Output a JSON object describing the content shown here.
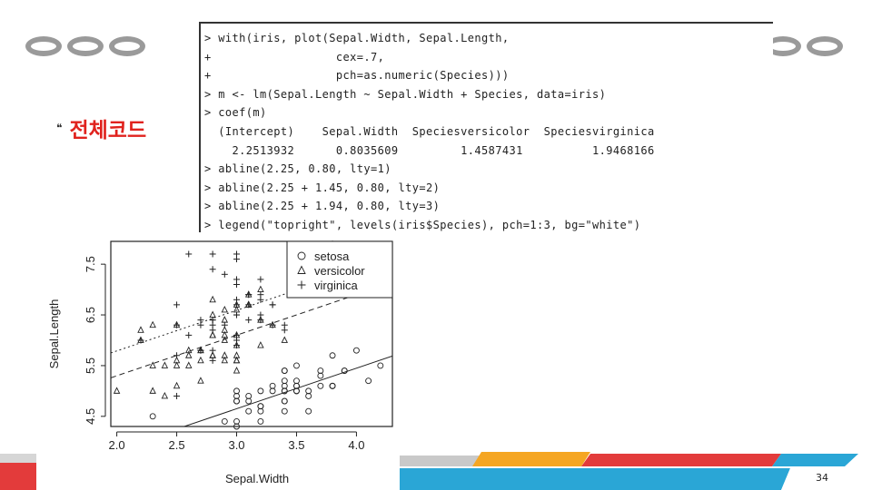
{
  "slide": {
    "heading": "전체코드",
    "bullet_icon": "quote-bullet-icon",
    "page_number": "34",
    "accent_colors": {
      "heading": "#e0221d",
      "ring": "#9a9a9a",
      "footer_red": "#e33b3b",
      "footer_blue": "#2aa6d6",
      "footer_orange": "#f5a623",
      "footer_gray": "#c9c9c9"
    }
  },
  "console": {
    "lines": [
      "> with(iris, plot(Sepal.Width, Sepal.Length,",
      "+                  cex=.7,",
      "+                  pch=as.numeric(Species)))",
      "> m <- lm(Sepal.Length ~ Sepal.Width + Species, data=iris)",
      "> coef(m)",
      "  (Intercept)    Sepal.Width  Speciesversicolor  Speciesvirginica",
      "    2.2513932      0.8035609         1.4587431          1.9468166",
      "> abline(2.25, 0.80, lty=1)",
      "> abline(2.25 + 1.45, 0.80, lty=2)",
      "> abline(2.25 + 1.94, 0.80, lty=3)",
      "> legend(\"topright\", levels(iris$Species), pch=1:3, bg=\"white\")"
    ]
  },
  "chart_data": {
    "type": "scatter",
    "xlabel": "Sepal.Width",
    "ylabel": "Sepal.Length",
    "xlim": [
      1.95,
      4.3
    ],
    "ylim": [
      4.3,
      7.95
    ],
    "x_ticks": [
      "2.0",
      "2.5",
      "3.0",
      "3.5",
      "4.0"
    ],
    "y_ticks": [
      "4.5",
      "5.5",
      "6.5",
      "7.5"
    ],
    "legend_position": "top-right",
    "series": [
      {
        "name": "setosa",
        "marker": "circle",
        "points": [
          [
            3.5,
            5.1
          ],
          [
            3.0,
            4.9
          ],
          [
            3.2,
            4.7
          ],
          [
            3.1,
            4.6
          ],
          [
            3.6,
            5.0
          ],
          [
            3.9,
            5.4
          ],
          [
            3.4,
            4.6
          ],
          [
            3.4,
            5.0
          ],
          [
            2.9,
            4.4
          ],
          [
            3.1,
            4.9
          ],
          [
            3.7,
            5.4
          ],
          [
            3.4,
            4.8
          ],
          [
            3.0,
            4.8
          ],
          [
            3.0,
            4.3
          ],
          [
            4.0,
            5.8
          ],
          [
            4.4,
            5.7
          ],
          [
            3.9,
            5.4
          ],
          [
            3.5,
            5.1
          ],
          [
            3.8,
            5.7
          ],
          [
            3.8,
            5.1
          ],
          [
            3.4,
            5.4
          ],
          [
            3.7,
            5.1
          ],
          [
            3.6,
            4.6
          ],
          [
            3.3,
            5.1
          ],
          [
            3.4,
            4.8
          ],
          [
            3.0,
            5.0
          ],
          [
            3.4,
            5.0
          ],
          [
            3.5,
            5.2
          ],
          [
            3.4,
            5.2
          ],
          [
            3.2,
            4.7
          ],
          [
            3.1,
            4.8
          ],
          [
            3.4,
            5.4
          ],
          [
            4.1,
            5.2
          ],
          [
            4.2,
            5.5
          ],
          [
            3.2,
            5.0
          ],
          [
            3.5,
            5.5
          ],
          [
            3.6,
            4.9
          ],
          [
            3.0,
            4.4
          ],
          [
            3.4,
            5.1
          ],
          [
            3.5,
            5.0
          ],
          [
            2.3,
            4.5
          ],
          [
            3.2,
            4.4
          ],
          [
            3.5,
            5.0
          ],
          [
            3.8,
            5.1
          ],
          [
            3.0,
            4.8
          ],
          [
            3.8,
            5.1
          ],
          [
            3.2,
            4.6
          ],
          [
            3.7,
            5.3
          ],
          [
            3.3,
            5.0
          ]
        ]
      },
      {
        "name": "versicolor",
        "marker": "triangle",
        "points": [
          [
            3.2,
            7.0
          ],
          [
            3.2,
            6.4
          ],
          [
            3.1,
            6.9
          ],
          [
            2.3,
            5.5
          ],
          [
            2.8,
            6.5
          ],
          [
            2.8,
            5.7
          ],
          [
            3.3,
            6.3
          ],
          [
            2.4,
            4.9
          ],
          [
            2.9,
            6.6
          ],
          [
            2.7,
            5.2
          ],
          [
            2.0,
            5.0
          ],
          [
            3.0,
            5.9
          ],
          [
            2.2,
            6.0
          ],
          [
            2.9,
            6.1
          ],
          [
            2.9,
            5.6
          ],
          [
            3.1,
            6.7
          ],
          [
            3.0,
            5.6
          ],
          [
            2.7,
            5.8
          ],
          [
            2.2,
            6.2
          ],
          [
            2.5,
            5.6
          ],
          [
            3.2,
            5.9
          ],
          [
            2.8,
            6.1
          ],
          [
            2.5,
            6.3
          ],
          [
            2.8,
            6.1
          ],
          [
            2.9,
            6.4
          ],
          [
            3.0,
            6.6
          ],
          [
            2.8,
            6.8
          ],
          [
            3.0,
            6.7
          ],
          [
            2.9,
            6.0
          ],
          [
            2.6,
            5.7
          ],
          [
            2.4,
            5.5
          ],
          [
            2.7,
            5.8
          ],
          [
            3.0,
            5.4
          ],
          [
            3.4,
            6.0
          ],
          [
            3.1,
            6.7
          ],
          [
            2.3,
            6.3
          ],
          [
            3.0,
            5.6
          ],
          [
            2.5,
            5.5
          ],
          [
            2.6,
            5.5
          ],
          [
            3.0,
            6.1
          ],
          [
            2.6,
            5.8
          ],
          [
            2.3,
            5.0
          ],
          [
            2.7,
            5.6
          ],
          [
            3.0,
            5.7
          ],
          [
            2.9,
            5.7
          ],
          [
            2.9,
            6.2
          ],
          [
            2.5,
            5.1
          ],
          [
            2.8,
            5.7
          ]
        ]
      },
      {
        "name": "virginica",
        "marker": "plus",
        "points": [
          [
            3.3,
            6.3
          ],
          [
            2.7,
            5.8
          ],
          [
            3.0,
            7.1
          ],
          [
            2.9,
            6.3
          ],
          [
            3.0,
            6.5
          ],
          [
            3.0,
            7.6
          ],
          [
            2.5,
            4.9
          ],
          [
            2.9,
            7.3
          ],
          [
            2.5,
            6.7
          ],
          [
            3.6,
            7.2
          ],
          [
            3.2,
            6.5
          ],
          [
            2.7,
            6.4
          ],
          [
            3.0,
            6.8
          ],
          [
            2.5,
            5.7
          ],
          [
            2.8,
            5.8
          ],
          [
            3.2,
            6.4
          ],
          [
            3.0,
            6.5
          ],
          [
            3.8,
            7.7
          ],
          [
            2.6,
            7.7
          ],
          [
            2.2,
            6.0
          ],
          [
            3.2,
            6.9
          ],
          [
            2.8,
            5.6
          ],
          [
            2.8,
            7.7
          ],
          [
            2.7,
            6.3
          ],
          [
            3.3,
            6.7
          ],
          [
            3.2,
            7.2
          ],
          [
            2.8,
            6.2
          ],
          [
            3.0,
            6.1
          ],
          [
            2.8,
            6.4
          ],
          [
            3.0,
            7.2
          ],
          [
            2.8,
            7.4
          ],
          [
            3.8,
            7.9
          ],
          [
            2.8,
            6.4
          ],
          [
            2.8,
            6.3
          ],
          [
            2.6,
            6.1
          ],
          [
            3.0,
            7.7
          ],
          [
            3.4,
            6.3
          ],
          [
            3.1,
            6.4
          ],
          [
            3.0,
            6.0
          ],
          [
            3.1,
            6.9
          ],
          [
            3.1,
            6.7
          ],
          [
            3.1,
            6.9
          ],
          [
            2.7,
            5.8
          ],
          [
            3.2,
            6.8
          ],
          [
            3.3,
            6.7
          ],
          [
            3.0,
            6.7
          ],
          [
            2.5,
            6.3
          ],
          [
            3.0,
            6.5
          ],
          [
            3.4,
            6.2
          ],
          [
            3.0,
            5.9
          ]
        ]
      }
    ],
    "lines": [
      {
        "intercept": 2.25,
        "slope": 0.8,
        "style": "solid"
      },
      {
        "intercept": 3.7,
        "slope": 0.8,
        "style": "dashed"
      },
      {
        "intercept": 4.19,
        "slope": 0.8,
        "style": "dotted"
      }
    ]
  }
}
